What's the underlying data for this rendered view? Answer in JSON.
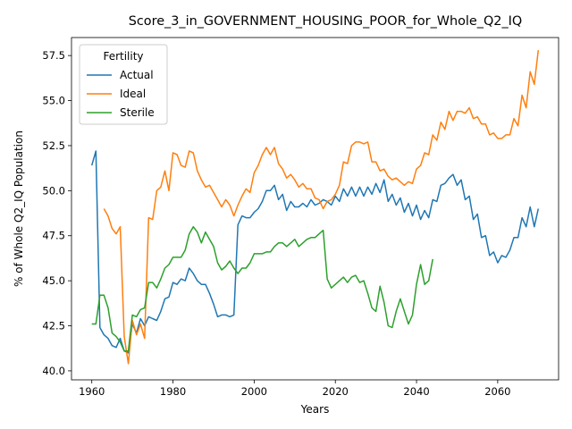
{
  "chart_data": {
    "type": "line",
    "title": "Score_3_in_GOVERNMENT_HOUSING_POOR_for_Whole_Q2_IQ",
    "xlabel": "Years",
    "ylabel": "% of Whole Q2_IQ Population",
    "xlim": [
      1955,
      2075
    ],
    "ylim": [
      39.5,
      58.5
    ],
    "xticks": [
      1960,
      1980,
      2000,
      2020,
      2040,
      2060
    ],
    "yticks": [
      40.0,
      42.5,
      45.0,
      47.5,
      50.0,
      52.5,
      55.0,
      57.5
    ],
    "ytick_labels": [
      "40.0",
      "42.5",
      "45.0",
      "47.5",
      "50.0",
      "52.5",
      "55.0",
      "57.5"
    ],
    "grid": false,
    "legend": {
      "title": "Fertility",
      "placement": "top-left"
    },
    "series": [
      {
        "name": "Actual",
        "color": "#1f77b4",
        "x": [
          1960,
          1961,
          1962,
          1963,
          1964,
          1965,
          1966,
          1967,
          1968,
          1969,
          1970,
          1971,
          1972,
          1973,
          1974,
          1975,
          1976,
          1977,
          1978,
          1979,
          1980,
          1981,
          1982,
          1983,
          1984,
          1985,
          1986,
          1987,
          1988,
          1989,
          1990,
          1991,
          1992,
          1993,
          1994,
          1995,
          1996,
          1997,
          1998,
          1999,
          2000,
          2001,
          2002,
          2003,
          2004,
          2005,
          2006,
          2007,
          2008,
          2009,
          2010,
          2011,
          2012,
          2013,
          2014,
          2015,
          2016,
          2017,
          2018,
          2019,
          2020,
          2021,
          2022,
          2023,
          2024,
          2025,
          2026,
          2027,
          2028,
          2029,
          2030,
          2031,
          2032,
          2033,
          2034,
          2035,
          2036,
          2037,
          2038,
          2039,
          2040,
          2041,
          2042,
          2043,
          2044,
          2045,
          2046,
          2047,
          2048,
          2049,
          2050,
          2051,
          2052,
          2053,
          2054,
          2055,
          2056,
          2057,
          2058,
          2059,
          2060,
          2061,
          2062,
          2063,
          2064,
          2065,
          2066,
          2067,
          2068,
          2069,
          2070
        ],
        "values": [
          51.4,
          52.2,
          42.4,
          42.0,
          41.8,
          41.4,
          41.3,
          41.8,
          41.1,
          41.0,
          42.6,
          42.1,
          42.9,
          42.5,
          43.0,
          42.9,
          42.8,
          43.3,
          44.0,
          44.1,
          44.9,
          44.8,
          45.1,
          45.0,
          45.7,
          45.4,
          45.0,
          44.8,
          44.8,
          44.3,
          43.7,
          43.0,
          43.1,
          43.1,
          43.0,
          43.1,
          48.1,
          48.6,
          48.5,
          48.5,
          48.8,
          49.0,
          49.4,
          50.0,
          50.0,
          50.3,
          49.5,
          49.8,
          48.9,
          49.4,
          49.1,
          49.1,
          49.3,
          49.1,
          49.5,
          49.2,
          49.3,
          49.5,
          49.4,
          49.2,
          49.7,
          49.4,
          50.1,
          49.7,
          50.2,
          49.7,
          50.2,
          49.7,
          50.2,
          49.8,
          50.4,
          49.9,
          50.6,
          49.4,
          49.8,
          49.2,
          49.6,
          48.8,
          49.3,
          48.6,
          49.2,
          48.4,
          48.9,
          48.5,
          49.5,
          49.4,
          50.3,
          50.4,
          50.7,
          50.9,
          50.3,
          50.6,
          49.5,
          49.7,
          48.4,
          48.7,
          47.4,
          47.5,
          46.4,
          46.6,
          46.0,
          46.4,
          46.3,
          46.7,
          47.4,
          47.4,
          48.5,
          48.0,
          49.1,
          48.0,
          49.0
        ]
      },
      {
        "name": "Ideal",
        "color": "#ff7f0e",
        "x": [
          1963,
          1964,
          1965,
          1966,
          1967,
          1968,
          1969,
          1970,
          1971,
          1972,
          1973,
          1974,
          1975,
          1976,
          1977,
          1978,
          1979,
          1980,
          1981,
          1982,
          1983,
          1984,
          1985,
          1986,
          1987,
          1988,
          1989,
          1990,
          1991,
          1992,
          1993,
          1994,
          1995,
          1996,
          1997,
          1998,
          1999,
          2000,
          2001,
          2002,
          2003,
          2004,
          2005,
          2006,
          2007,
          2008,
          2009,
          2010,
          2011,
          2012,
          2013,
          2014,
          2015,
          2016,
          2017,
          2018,
          2019,
          2020,
          2021,
          2022,
          2023,
          2024,
          2025,
          2026,
          2027,
          2028,
          2029,
          2030,
          2031,
          2032,
          2033,
          2034,
          2035,
          2036,
          2037,
          2038,
          2039,
          2040,
          2041,
          2042,
          2043,
          2044,
          2045,
          2046,
          2047,
          2048,
          2049,
          2050,
          2051,
          2052,
          2053,
          2054,
          2055,
          2056,
          2057,
          2058,
          2059,
          2060,
          2061,
          2062,
          2063,
          2064,
          2065,
          2066,
          2067,
          2068,
          2069,
          2070
        ],
        "values": [
          49.0,
          48.6,
          47.9,
          47.6,
          48.0,
          41.9,
          40.4,
          42.8,
          42.0,
          42.6,
          41.8,
          48.5,
          48.4,
          50.0,
          50.2,
          51.1,
          50.0,
          52.1,
          52.0,
          51.4,
          51.3,
          52.2,
          52.1,
          51.1,
          50.6,
          50.2,
          50.3,
          49.9,
          49.5,
          49.1,
          49.5,
          49.2,
          48.6,
          49.2,
          49.7,
          50.1,
          49.9,
          51.0,
          51.4,
          52.0,
          52.4,
          52.0,
          52.4,
          51.5,
          51.2,
          50.7,
          50.9,
          50.6,
          50.2,
          50.4,
          50.1,
          50.1,
          49.6,
          49.5,
          49.0,
          49.4,
          49.5,
          49.8,
          50.3,
          51.6,
          51.5,
          52.5,
          52.7,
          52.7,
          52.6,
          52.7,
          51.6,
          51.6,
          51.1,
          51.2,
          50.8,
          50.6,
          50.7,
          50.5,
          50.3,
          50.5,
          50.4,
          51.2,
          51.4,
          52.1,
          52.0,
          53.1,
          52.8,
          53.8,
          53.4,
          54.4,
          53.9,
          54.4,
          54.4,
          54.3,
          54.6,
          54.0,
          54.1,
          53.7,
          53.7,
          53.1,
          53.2,
          52.9,
          52.9,
          53.1,
          53.1,
          54.0,
          53.6,
          55.3,
          54.6,
          56.6,
          55.9,
          57.8
        ]
      },
      {
        "name": "Sterile",
        "color": "#2ca02c",
        "x": [
          1960,
          1961,
          1962,
          1963,
          1964,
          1965,
          1966,
          1967,
          1968,
          1969,
          1970,
          1971,
          1972,
          1973,
          1974,
          1975,
          1976,
          1977,
          1978,
          1979,
          1980,
          1981,
          1982,
          1983,
          1984,
          1985,
          1986,
          1987,
          1988,
          1989,
          1990,
          1991,
          1992,
          1993,
          1994,
          1995,
          1996,
          1997,
          1998,
          1999,
          2000,
          2001,
          2002,
          2003,
          2004,
          2005,
          2006,
          2007,
          2008,
          2009,
          2010,
          2011,
          2012,
          2013,
          2014,
          2015,
          2016,
          2017,
          2018,
          2019,
          2020,
          2021,
          2022,
          2023,
          2024,
          2025,
          2026,
          2027,
          2028,
          2029,
          2030,
          2031,
          2032,
          2033,
          2034,
          2035,
          2036,
          2037,
          2038,
          2039,
          2040,
          2041,
          2042,
          2043,
          2044
        ],
        "values": [
          42.6,
          42.6,
          44.2,
          44.2,
          43.5,
          42.1,
          41.9,
          41.6,
          41.1,
          41.1,
          43.1,
          43.0,
          43.4,
          43.5,
          44.9,
          44.9,
          44.6,
          45.1,
          45.7,
          45.9,
          46.3,
          46.3,
          46.3,
          46.7,
          47.6,
          48.0,
          47.7,
          47.1,
          47.7,
          47.3,
          46.9,
          46.0,
          45.6,
          45.8,
          46.1,
          45.7,
          45.4,
          45.7,
          45.7,
          46.0,
          46.5,
          46.5,
          46.5,
          46.6,
          46.6,
          46.9,
          47.1,
          47.1,
          46.9,
          47.1,
          47.3,
          46.9,
          47.1,
          47.3,
          47.4,
          47.4,
          47.6,
          47.8,
          45.1,
          44.6,
          44.8,
          45.0,
          45.2,
          44.9,
          45.2,
          45.3,
          44.9,
          45.0,
          44.3,
          43.5,
          43.3,
          44.7,
          43.8,
          42.5,
          42.4,
          43.3,
          44.0,
          43.3,
          42.6,
          43.1,
          44.8,
          45.9,
          44.8,
          45.0,
          46.2
        ]
      }
    ]
  }
}
